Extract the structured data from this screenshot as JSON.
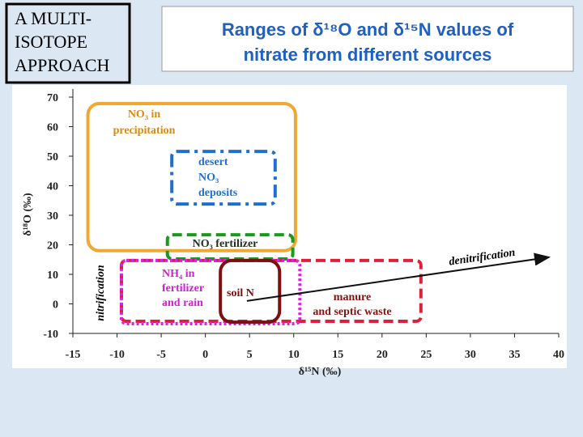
{
  "header": {
    "badge": [
      "A MULTI-",
      "ISOTOPE",
      "APPROACH"
    ],
    "title": [
      "Ranges of δ¹⁸O and δ¹⁵N values of",
      "nitrate from different sources"
    ]
  },
  "chart_data": {
    "type": "region",
    "xlabel": "δ¹⁵N (‰)",
    "ylabel": "δ¹⁸O (‰)",
    "xlim": [
      -15,
      40
    ],
    "ylim": [
      -10,
      70
    ],
    "xticks": [
      -15,
      -10,
      -5,
      0,
      5,
      10,
      15,
      20,
      25,
      30,
      35,
      40
    ],
    "yticks": [
      -10,
      0,
      10,
      20,
      30,
      40,
      50,
      60,
      70
    ],
    "regions": [
      {
        "name": [
          "NO₃ in",
          "precipitation"
        ],
        "color": "#f0a830",
        "style": "solid",
        "x": [
          -13.3,
          10.2
        ],
        "y": [
          18,
          67.8
        ]
      },
      {
        "name": [
          "desert",
          "NO₃",
          "deposits"
        ],
        "color": "#1f6fd0",
        "style": "dashdot",
        "x": [
          -3.8,
          7.9
        ],
        "y": [
          33.8,
          51.6
        ]
      },
      {
        "name": [
          "NO₃ fertilizer"
        ],
        "color": "#1a9a1a",
        "style": "dashed",
        "x": [
          -4.3,
          9.9
        ],
        "y": [
          15.2,
          23.4
        ]
      },
      {
        "name": [
          "manure",
          "and septic waste"
        ],
        "color": "#e0203a",
        "style": "dashed",
        "x": [
          -9.5,
          24.4
        ],
        "y": [
          -5.9,
          14.7
        ]
      },
      {
        "name": [
          "NH₄ in",
          "fertilizer",
          "and rain"
        ],
        "color": "#e020e0",
        "style": "dotted",
        "x": [
          -9.5,
          10.7
        ],
        "y": [
          -6.7,
          14.7
        ]
      },
      {
        "name": [
          "soil N"
        ],
        "color": "#7a1010",
        "style": "solid",
        "x": [
          1.7,
          8.4
        ],
        "y": [
          -6.2,
          14.7
        ]
      }
    ],
    "arrows": [
      {
        "name": "denitrification",
        "x": [
          4.7,
          38.9
        ],
        "y": [
          1,
          15.8
        ]
      }
    ],
    "annotations": [
      "nitrification"
    ]
  }
}
